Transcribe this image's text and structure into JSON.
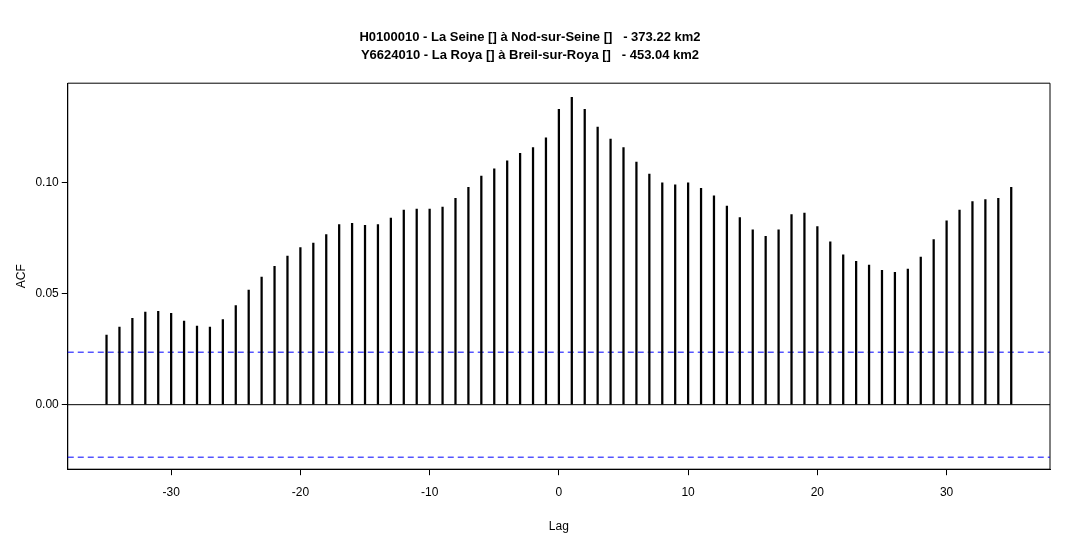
{
  "chart_data": {
    "type": "bar",
    "title": "H0100010 - La Seine [] à Nod-sur-Seine []   - 373.22 km2",
    "subtitle": "Y6624010 - La Roya [] à Breil-sur-Roya []   - 453.04 km2",
    "xlabel": "Lag",
    "ylabel": "ACF",
    "x": [
      -35,
      -34,
      -33,
      -32,
      -31,
      -30,
      -29,
      -28,
      -27,
      -26,
      -25,
      -24,
      -23,
      -22,
      -21,
      -20,
      -19,
      -18,
      -17,
      -16,
      -15,
      -14,
      -13,
      -12,
      -11,
      -10,
      -9,
      -8,
      -7,
      -6,
      -5,
      -4,
      -3,
      -2,
      -1,
      0,
      1,
      2,
      3,
      4,
      5,
      6,
      7,
      8,
      9,
      10,
      11,
      12,
      13,
      14,
      15,
      16,
      17,
      18,
      19,
      20,
      21,
      22,
      23,
      24,
      25,
      26,
      27,
      28,
      29,
      30,
      31,
      32,
      33,
      34,
      35
    ],
    "series": [
      {
        "color": "#000000",
        "values": [
          0.0313,
          0.0349,
          0.0388,
          0.0416,
          0.042,
          0.0411,
          0.0376,
          0.0353,
          0.0349,
          0.0382,
          0.0446,
          0.0515,
          0.0573,
          0.0622,
          0.0668,
          0.0706,
          0.0726,
          0.0765,
          0.081,
          0.0815,
          0.0806,
          0.081,
          0.0839,
          0.0875,
          0.0879,
          0.0879,
          0.0888,
          0.0928,
          0.0977,
          0.1028,
          0.106,
          0.1096,
          0.113,
          0.1156,
          0.1199,
          0.1327,
          0.1381,
          0.1327,
          0.1248,
          0.1194,
          0.1156,
          0.109,
          0.1037,
          0.0997,
          0.0988,
          0.0997,
          0.0972,
          0.0939,
          0.0893,
          0.0841,
          0.0786,
          0.0757,
          0.0786,
          0.0855,
          0.0861,
          0.0801,
          0.0732,
          0.0673,
          0.0644,
          0.0628,
          0.0604,
          0.0595,
          0.061,
          0.0664,
          0.0742,
          0.0826,
          0.0875,
          0.0913,
          0.0922,
          0.0928,
          0.0977
        ]
      }
    ],
    "xlim": [
      -38,
      38
    ],
    "xticks": [
      -30,
      -20,
      -10,
      0,
      10,
      20,
      30
    ],
    "ylim": [
      -0.029,
      0.1445
    ],
    "yticks": [
      {
        "value": 0,
        "label": "0.00"
      },
      {
        "value": 0.05,
        "label": "0.05"
      },
      {
        "value": 0.1,
        "label": "0.10"
      }
    ],
    "ref_lines": [
      {
        "axis": "y",
        "value": 0.0236,
        "color": "#0000ff",
        "line_style": "dashed"
      },
      {
        "axis": "y",
        "value": -0.0236,
        "color": "#0000ff",
        "line_style": "dashed"
      },
      {
        "axis": "y",
        "value": 0,
        "color": "#000000",
        "line_style": "solid"
      }
    ],
    "grid": false,
    "legend": false
  }
}
